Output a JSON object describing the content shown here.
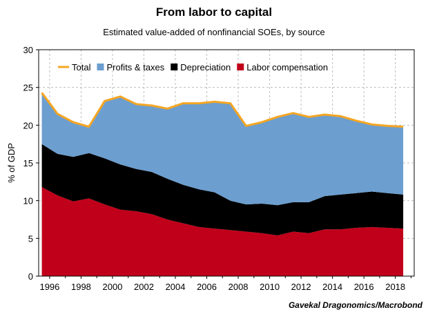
{
  "chart_data": {
    "type": "area",
    "title": "From labor to capital",
    "subtitle": "Estimated value-added of nonfinancial SOEs, by source",
    "ylabel": "% of GDP",
    "xlabel": "",
    "source": "Gavekal Dragonomics/Macrobond",
    "xlim": [
      1995.3,
      2019.2
    ],
    "ylim": [
      0,
      30
    ],
    "yticks": [
      0,
      5,
      10,
      15,
      20,
      25,
      30
    ],
    "xticks": [
      1996,
      1998,
      2000,
      2002,
      2004,
      2006,
      2008,
      2010,
      2012,
      2014,
      2016,
      2018
    ],
    "grid": true,
    "legend_position": "top-left",
    "x": [
      1995.5,
      1996.5,
      1997.5,
      1998.5,
      1999.5,
      2000.5,
      2001.5,
      2002.5,
      2003.5,
      2004.5,
      2005.5,
      2006.5,
      2007.5,
      2008.5,
      2009.5,
      2010.5,
      2011.5,
      2012.5,
      2013.5,
      2014.5,
      2015.5,
      2016.5,
      2017.5,
      2018.5
    ],
    "series": [
      {
        "name": "Labor compensation",
        "color": "#c0001a",
        "values": [
          11.8,
          10.7,
          9.9,
          10.3,
          9.5,
          8.8,
          8.6,
          8.2,
          7.5,
          7.0,
          6.5,
          6.3,
          6.1,
          5.9,
          5.7,
          5.4,
          5.9,
          5.7,
          6.2,
          6.2,
          6.4,
          6.5,
          6.4,
          6.3
        ]
      },
      {
        "name": "Depreciation",
        "color": "#000000",
        "values": [
          5.7,
          5.5,
          5.9,
          6.0,
          6.1,
          6.0,
          5.6,
          5.6,
          5.4,
          5.1,
          5.0,
          4.8,
          3.9,
          3.6,
          3.9,
          4.0,
          3.9,
          4.1,
          4.4,
          4.6,
          4.6,
          4.7,
          4.6,
          4.5
        ]
      },
      {
        "name": "Profits & taxes",
        "color": "#6c9ecf",
        "values": [
          6.8,
          5.3,
          4.6,
          3.5,
          7.6,
          9.0,
          8.6,
          8.8,
          9.3,
          10.8,
          11.4,
          12.0,
          12.9,
          10.4,
          10.8,
          11.7,
          11.8,
          11.3,
          10.8,
          10.4,
          9.6,
          8.9,
          8.9,
          9.0
        ]
      },
      {
        "name": "Total",
        "color": "#f5a623",
        "values": [
          24.3,
          21.5,
          20.4,
          19.8,
          23.2,
          23.8,
          22.8,
          22.6,
          22.2,
          22.9,
          22.9,
          23.1,
          22.9,
          19.9,
          20.4,
          21.1,
          21.6,
          21.1,
          21.4,
          21.2,
          20.6,
          20.1,
          19.9,
          19.8
        ]
      }
    ]
  }
}
